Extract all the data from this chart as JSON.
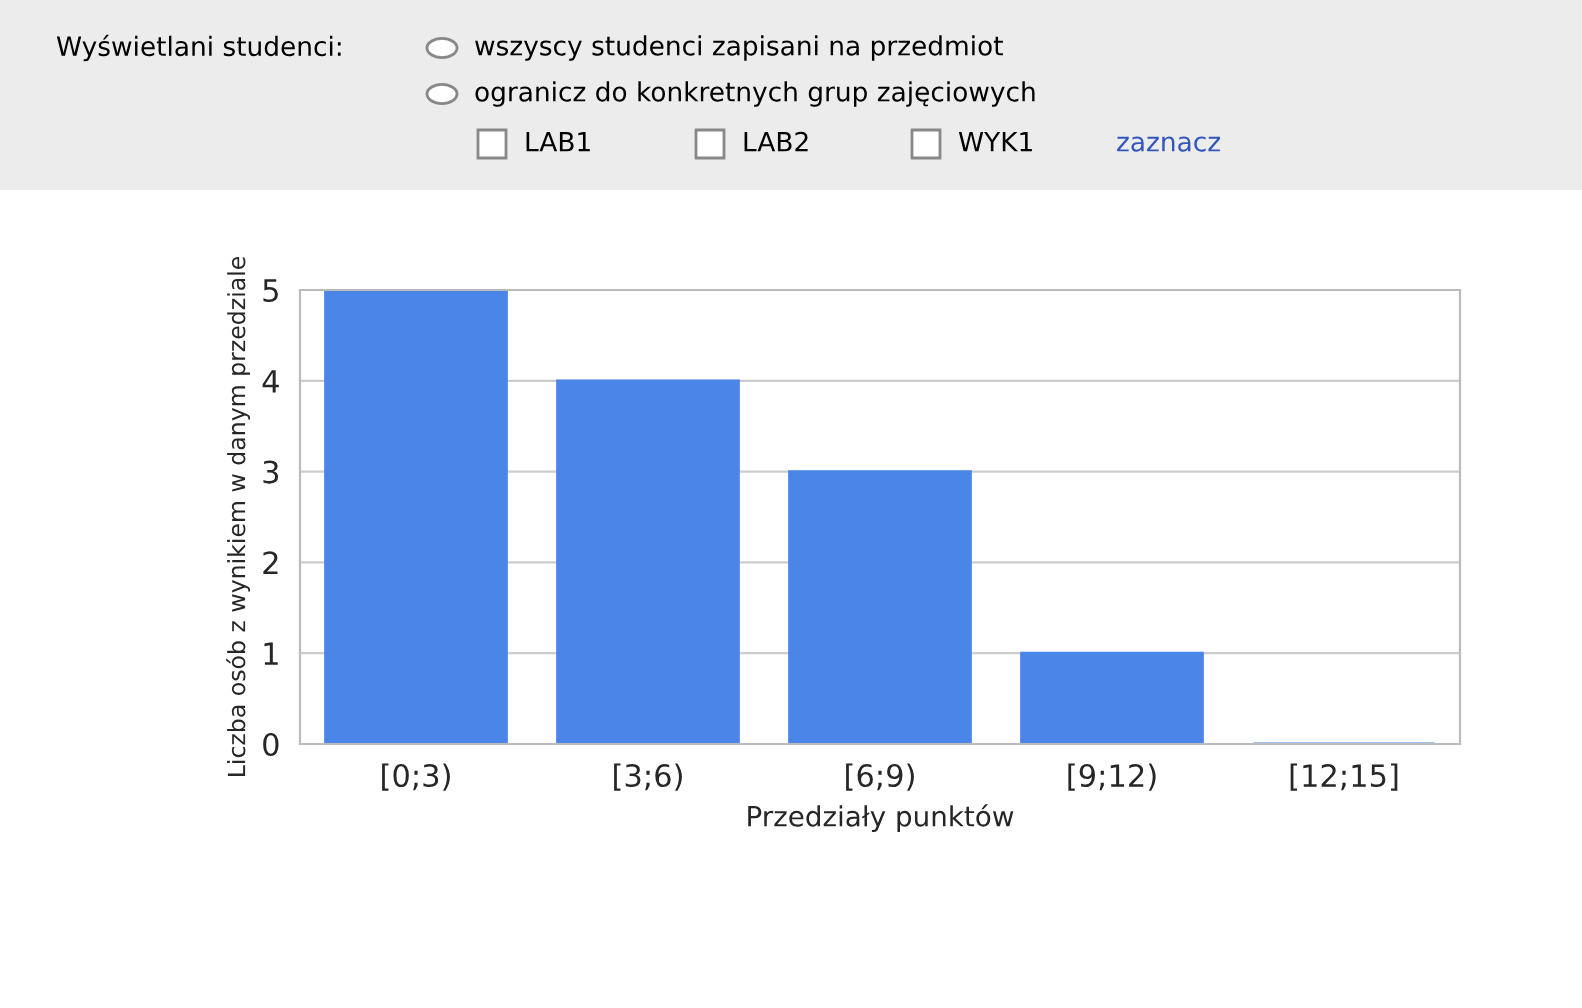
{
  "chart_data": {
    "type": "bar",
    "categories": [
      "[0;3)",
      "[3;6)",
      "[6;9)",
      "[9;12)",
      "[12;15]"
    ],
    "values": [
      5,
      4,
      3,
      1,
      0
    ],
    "color": "#4a86e8",
    "xlabel": "Przedziały punktów",
    "ylabel": "Liczba osób z wynikiem w danym przedziale",
    "ylim": [
      0,
      5
    ],
    "yticks": [
      0,
      1,
      2,
      3,
      4,
      5
    ],
    "grid": "y",
    "annotations": [
      "Wyświetlani studenci:",
      "wszyscy studenci zapisani na przedmiot",
      "ogranicz do konkretnych grup zajęciowych",
      "LAB1",
      "LAB2",
      "WYK1",
      "zaznacz"
    ]
  }
}
